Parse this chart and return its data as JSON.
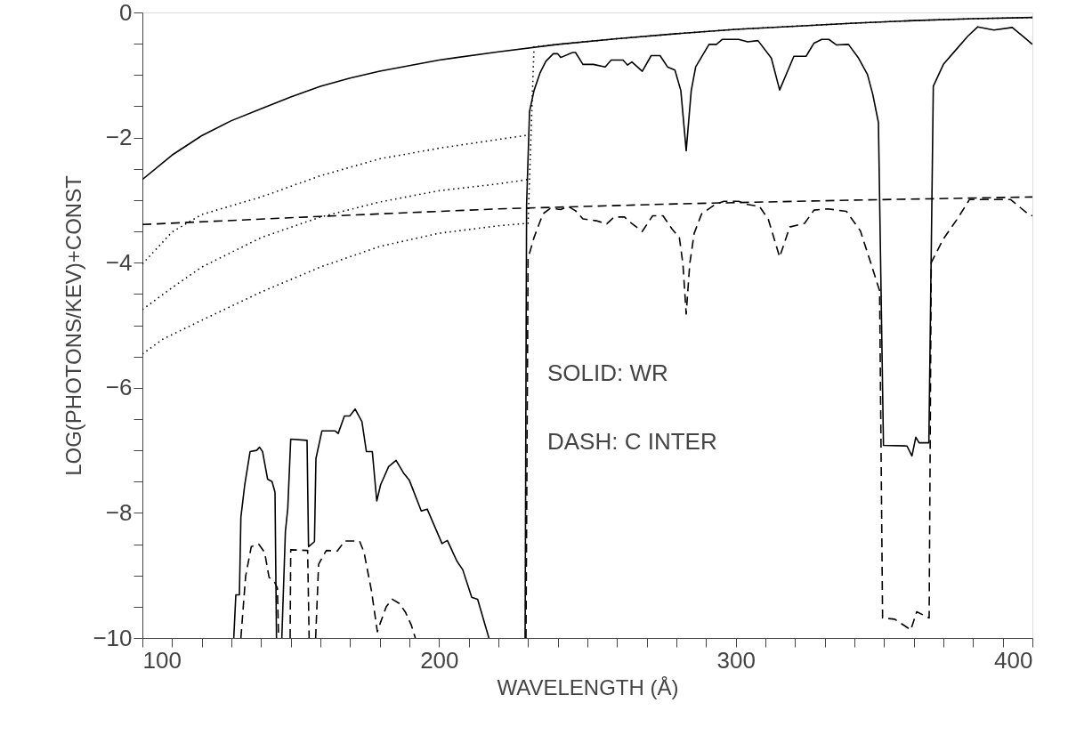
{
  "chart_data": {
    "type": "line",
    "xlabel": "WAVELENGTH (Å)",
    "ylabel": "LOG(PHOTONS/KEV)+CONST",
    "xlim": [
      100,
      400
    ],
    "ylim": [
      -10,
      0
    ],
    "xticks": [
      100,
      {
        "value": 110,
        "label": null
      },
      {
        "value": 120,
        "label": null
      },
      {
        "value": 130,
        "label": null
      },
      {
        "value": 140,
        "label": null
      },
      {
        "value": 150,
        "label": null
      },
      {
        "value": 160,
        "label": null
      },
      {
        "value": 170,
        "label": null
      },
      {
        "value": 180,
        "label": null
      },
      {
        "value": 190,
        "label": null
      },
      200,
      {
        "value": 210,
        "label": null
      },
      {
        "value": 220,
        "label": null
      },
      {
        "value": 230,
        "label": null
      },
      {
        "value": 240,
        "label": null
      },
      {
        "value": 250,
        "label": null
      },
      {
        "value": 260,
        "label": null
      },
      {
        "value": 270,
        "label": null
      },
      {
        "value": 280,
        "label": null
      },
      {
        "value": 290,
        "label": null
      },
      300,
      {
        "value": 310,
        "label": null
      },
      {
        "value": 320,
        "label": null
      },
      {
        "value": 330,
        "label": null
      },
      {
        "value": 340,
        "label": null
      },
      {
        "value": 350,
        "label": null
      },
      {
        "value": 360,
        "label": null
      },
      {
        "value": 370,
        "label": null
      },
      {
        "value": 380,
        "label": null
      },
      {
        "value": 390,
        "label": null
      },
      400
    ],
    "yticks": [
      -10,
      {
        "value": -9.5,
        "label": null
      },
      {
        "value": -9,
        "label": null
      },
      {
        "value": -8.5,
        "label": null
      },
      -8,
      {
        "value": -7.5,
        "label": null
      },
      {
        "value": -7,
        "label": null
      },
      {
        "value": -6.5,
        "label": null
      },
      -6,
      {
        "value": -5.5,
        "label": null
      },
      {
        "value": -5,
        "label": null
      },
      {
        "value": -4.5,
        "label": null
      },
      -4,
      {
        "value": -3.5,
        "label": null
      },
      {
        "value": -3,
        "label": null
      },
      {
        "value": -2.5,
        "label": null
      },
      -2,
      {
        "value": -1.5,
        "label": null
      },
      {
        "value": -1,
        "label": null
      },
      {
        "value": -0.5,
        "label": null
      },
      0
    ],
    "grid": false,
    "annotations": [
      "SOLID: WR",
      "DASH: C INTER"
    ],
    "series": [
      {
        "color": "#000000",
        "line_style": "solid",
        "x": [
          100,
          110,
          120,
          130,
          140,
          150,
          160,
          170,
          180,
          190,
          200,
          220,
          240,
          260,
          280,
          300,
          320,
          340,
          360,
          380,
          400
        ],
        "values": [
          -2.67,
          -2.28,
          -1.97,
          -1.73,
          -1.54,
          -1.35,
          -1.18,
          -1.05,
          -0.94,
          -0.85,
          -0.76,
          -0.63,
          -0.51,
          -0.42,
          -0.34,
          -0.27,
          -0.22,
          -0.17,
          -0.13,
          -0.1,
          -0.08
        ]
      },
      {
        "color": "#000000",
        "line_style": "dotted",
        "x": [
          100,
          110,
          120,
          130,
          140,
          160,
          180,
          200,
          220,
          230
        ],
        "values": [
          -4.02,
          -3.51,
          -3.23,
          -3.09,
          -2.95,
          -2.61,
          -2.34,
          -2.17,
          -2.03,
          -1.96
        ]
      },
      {
        "color": "#000000",
        "line_style": "dotted",
        "x": [
          100,
          110,
          120,
          140,
          160,
          180,
          200,
          220,
          230
        ],
        "values": [
          -4.75,
          -4.4,
          -4.07,
          -3.6,
          -3.27,
          -3.03,
          -2.85,
          -2.74,
          -2.67
        ]
      },
      {
        "color": "#000000",
        "line_style": "dotted",
        "x": [
          100,
          107,
          120,
          140,
          160,
          180,
          200,
          220,
          230,
          232,
          240,
          260,
          280,
          300,
          320,
          340,
          360,
          380,
          400
        ],
        "values": [
          -5.46,
          -5.22,
          -4.92,
          -4.47,
          -4.07,
          -3.74,
          -3.53,
          -3.41,
          -3.37,
          -0.55,
          -0.51,
          -0.42,
          -0.34,
          -0.27,
          -0.22,
          -0.17,
          -0.13,
          -0.1,
          -0.08
        ]
      },
      {
        "color": "#000000",
        "line_style": "dashed",
        "x": [
          100,
          160,
          220,
          280,
          340,
          400
        ],
        "values": [
          -3.39,
          -3.26,
          -3.14,
          -3.06,
          -3.0,
          -2.95
        ]
      },
      {
        "color": "#000000",
        "line_style": "solid",
        "x": [
          130.8,
          131.5,
          132.7,
          133.2,
          134.5,
          136.3,
          138.5,
          139.5,
          140.5,
          142.2,
          143.7,
          144.7,
          145.2,
          146,
          147,
          148.2,
          149,
          150,
          155.5,
          156,
          158,
          158.5,
          160.5,
          165,
          166,
          168.1,
          169.9,
          171.7,
          174,
          175.5,
          177.5,
          179,
          180.3,
          183,
          185.5,
          188,
          190,
          194,
          196,
          201,
          202.8,
          206,
          208,
          211,
          213,
          216.8,
          223,
          229,
          229.5,
          230.5,
          232,
          234,
          236,
          238.5,
          240,
          241,
          245,
          246,
          248.5,
          252,
          256,
          258,
          262,
          263.5,
          265,
          268.5,
          271.5,
          274.5,
          277,
          279.5,
          281.5,
          283.3,
          285,
          286.5,
          291,
          293.5,
          295.5,
          301,
          304,
          307.5,
          312,
          314.8,
          319.6,
          323.7,
          326.4,
          329,
          331.4,
          334,
          338,
          341.4,
          344.4,
          346.2,
          348.1,
          349.8,
          357.7,
          359.4,
          360.7,
          361.8,
          365.1,
          366.6,
          370,
          374,
          378.2,
          381.6,
          387,
          393.2,
          397.3,
          400
        ],
        "values": [
          -10,
          -9.31,
          -9.31,
          -8.07,
          -7.55,
          -7.02,
          -7.0,
          -6.95,
          -7.02,
          -7.46,
          -7.5,
          -7.67,
          -10,
          null,
          -10,
          -8.3,
          -7.93,
          -6.82,
          -6.84,
          -8.54,
          -8.46,
          -7.13,
          -6.69,
          -6.69,
          -6.73,
          -6.45,
          -6.45,
          -6.34,
          -6.54,
          -7.02,
          -7.02,
          -7.81,
          -7.55,
          -7.26,
          -7.16,
          -7.36,
          -7.48,
          -7.97,
          -7.94,
          -8.49,
          -8.44,
          -8.77,
          -8.91,
          -9.35,
          -9.38,
          -10,
          null,
          -10,
          -3.08,
          -1.58,
          -1.25,
          -0.97,
          -0.78,
          -0.66,
          -0.66,
          -0.72,
          -0.64,
          -0.64,
          -0.83,
          -0.83,
          -0.87,
          -0.76,
          -0.76,
          -0.84,
          -0.79,
          -0.94,
          -0.69,
          -0.69,
          -0.87,
          -0.92,
          -1.25,
          -2.21,
          -1.25,
          -0.87,
          -0.51,
          -0.51,
          -0.43,
          -0.43,
          -0.47,
          -0.45,
          -0.73,
          -1.24,
          -0.7,
          -0.7,
          -0.49,
          -0.43,
          -0.43,
          -0.52,
          -0.51,
          -0.73,
          -0.99,
          -1.31,
          -1.76,
          -6.92,
          -6.93,
          -7.09,
          -6.79,
          -6.88,
          -6.88,
          -1.18,
          -0.83,
          -0.61,
          -0.38,
          -0.23,
          -0.28,
          -0.24,
          -0.4,
          -0.51
        ]
      },
      {
        "color": "#000000",
        "line_style": "dashed",
        "x": [
          133.2,
          134.8,
          136.7,
          139.2,
          141.2,
          142.7,
          144.5,
          145.5,
          145.9,
          148,
          149.8,
          150,
          155.7,
          156.2,
          157,
          158.4,
          159.4,
          162,
          165.7,
          168.2,
          173.2,
          174.7,
          177.2,
          179.2,
          180.2,
          182.2,
          184.2,
          186.7,
          188.7,
          190.7,
          192,
          210,
          229.3,
          230,
          232,
          235,
          237.5,
          241,
          243.5,
          246,
          248.5,
          253,
          256.5,
          259,
          262.5,
          264,
          268.5,
          272,
          275.5,
          278.5,
          281,
          282.2,
          283.3,
          284.5,
          286,
          288.5,
          293,
          296,
          301,
          304,
          308,
          311,
          314.8,
          318.2,
          323.2,
          326.4,
          331.1,
          337.3,
          342,
          345.5,
          348.5,
          349.5,
          353.6,
          359,
          361,
          365.2,
          365.9,
          370,
          374.7,
          378.8,
          383,
          386.4,
          392.6,
          398.8,
          400
        ],
        "values": [
          -10,
          -9.01,
          -8.54,
          -8.5,
          -8.63,
          -9.03,
          -9.1,
          -9.2,
          -10,
          null,
          -10,
          -8.59,
          -8.6,
          -10,
          null,
          -10,
          -8.82,
          -8.6,
          -8.61,
          -8.45,
          -8.45,
          -8.63,
          -9.24,
          -9.9,
          -9.76,
          -9.5,
          -9.38,
          -9.45,
          -9.59,
          -9.8,
          -10,
          null,
          -10,
          -3.93,
          -3.6,
          -3.22,
          -3.13,
          -3.15,
          -3.1,
          -3.17,
          -3.3,
          -3.33,
          -3.38,
          -3.27,
          -3.27,
          -3.34,
          -3.5,
          -3.25,
          -3.25,
          -3.46,
          -3.6,
          -4.02,
          -4.82,
          -4.02,
          -3.53,
          -3.22,
          -3.07,
          -3.02,
          -3.02,
          -3.07,
          -3.1,
          -3.31,
          -3.91,
          -3.43,
          -3.37,
          -3.16,
          -3.14,
          -3.18,
          -3.49,
          -4.0,
          -4.45,
          -9.68,
          -9.7,
          -9.87,
          -9.58,
          -9.68,
          -4.0,
          -3.62,
          -3.3,
          -2.99,
          -2.99,
          -2.99,
          -2.99,
          -3.23,
          -3.25
        ]
      }
    ]
  }
}
